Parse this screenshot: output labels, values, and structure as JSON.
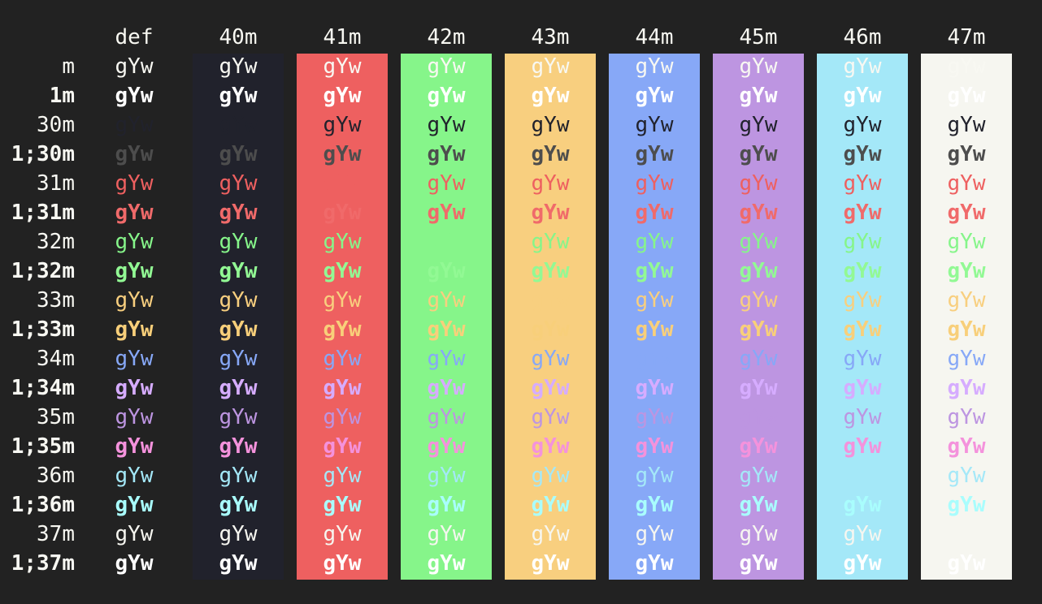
{
  "sample_text": "gYw",
  "columns": [
    {
      "label": "def",
      "bg": null
    },
    {
      "label": "40m",
      "bg": "#21222c"
    },
    {
      "label": "41m",
      "bg": "#ee6060"
    },
    {
      "label": "42m",
      "bg": "#86f58a"
    },
    {
      "label": "43m",
      "bg": "#f8cf7f"
    },
    {
      "label": "44m",
      "bg": "#87a8f7"
    },
    {
      "label": "45m",
      "bg": "#bd95e1"
    },
    {
      "label": "46m",
      "bg": "#a4e8f8"
    },
    {
      "label": "47m",
      "bg": "#f6f6f0"
    }
  ],
  "rows": [
    {
      "label": "m",
      "fg": "#f8f8f2",
      "bold": false
    },
    {
      "label": "1m",
      "fg": "#ffffff",
      "bold": true
    },
    {
      "label": "30m",
      "fg": "#21222c",
      "bold": false
    },
    {
      "label": "1;30m",
      "fg": "#4d4d4d",
      "bold": true
    },
    {
      "label": "31m",
      "fg": "#ee6060",
      "bold": false
    },
    {
      "label": "1;31m",
      "fg": "#f06a6a",
      "bold": true
    },
    {
      "label": "32m",
      "fg": "#86f58a",
      "bold": false
    },
    {
      "label": "1;32m",
      "fg": "#92f994",
      "bold": true
    },
    {
      "label": "33m",
      "fg": "#f8cf7f",
      "bold": false
    },
    {
      "label": "1;33m",
      "fg": "#f8cf7a",
      "bold": true
    },
    {
      "label": "34m",
      "fg": "#87a8f7",
      "bold": false
    },
    {
      "label": "1;34m",
      "fg": "#d6acff",
      "bold": true
    },
    {
      "label": "35m",
      "fg": "#bd95e1",
      "bold": false
    },
    {
      "label": "1;35m",
      "fg": "#f492dc",
      "bold": true
    },
    {
      "label": "36m",
      "fg": "#a4e8f8",
      "bold": false
    },
    {
      "label": "1;36m",
      "fg": "#a9fdfd",
      "bold": true
    },
    {
      "label": "37m",
      "fg": "#f6f6f0",
      "bold": false
    },
    {
      "label": "1;37m",
      "fg": "#ffffff",
      "bold": true
    }
  ]
}
